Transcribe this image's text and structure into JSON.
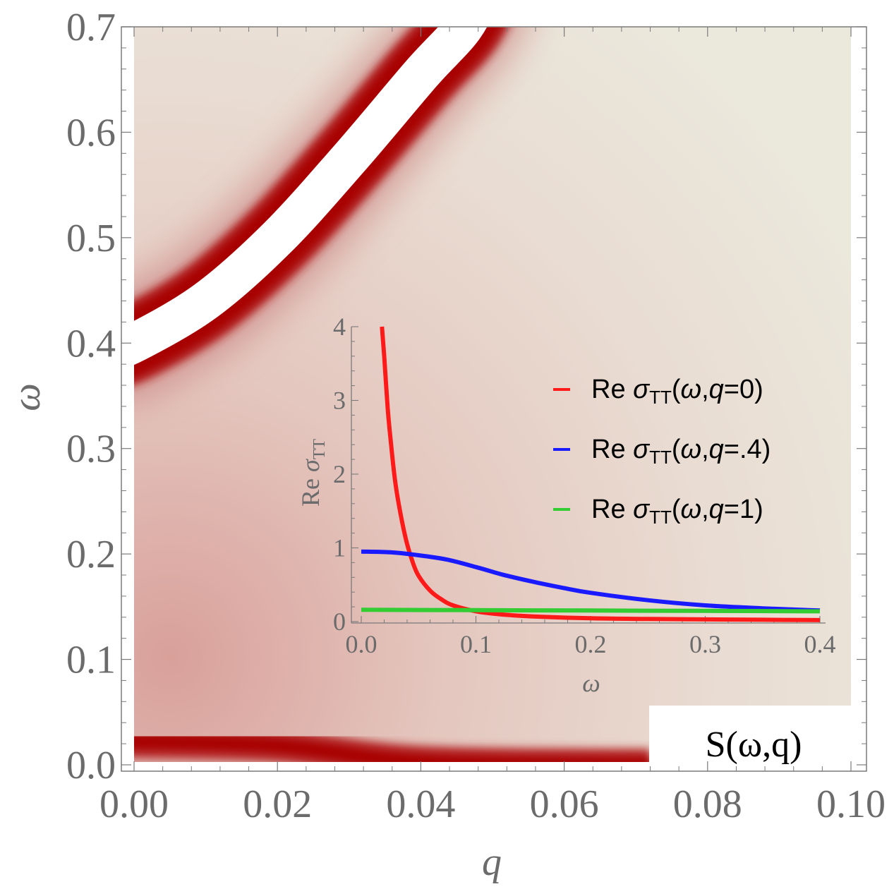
{
  "chart_data": [
    {
      "type": "heatmap",
      "title": "S(ω,q)",
      "xlabel": "q",
      "ylabel": "ω",
      "xlim": [
        0.0,
        0.1
      ],
      "ylim": [
        0.0,
        0.7
      ],
      "x_ticks": [
        "0.00",
        "0.02",
        "0.04",
        "0.06",
        "0.08",
        "0.10"
      ],
      "y_ticks": [
        "0.0",
        "0.1",
        "0.2",
        "0.3",
        "0.4",
        "0.5",
        "0.6",
        "0.7"
      ],
      "colors": {
        "peak": "#a80000",
        "background": "#ebe7da",
        "saturated": "#ffffff"
      },
      "features": [
        {
          "name": "low-frequency band",
          "points": [
            [
              0.0,
              0.022
            ],
            [
              0.02,
              0.018
            ],
            [
              0.04,
              0.003
            ],
            [
              0.072,
              0.0
            ]
          ]
        },
        {
          "name": "main dispersion band",
          "points": [
            [
              0.0,
              0.4
            ],
            [
              0.01,
              0.44
            ],
            [
              0.02,
              0.5
            ],
            [
              0.03,
              0.575
            ],
            [
              0.04,
              0.655
            ],
            [
              0.046,
              0.7
            ]
          ]
        }
      ]
    },
    {
      "type": "line",
      "xlabel": "ω",
      "ylabel": "Re σTT",
      "xlim": [
        0.0,
        0.4
      ],
      "ylim": [
        0,
        4
      ],
      "x_ticks": [
        "0.0",
        "0.1",
        "0.2",
        "0.3",
        "0.4"
      ],
      "y_ticks": [
        "0",
        "1",
        "2",
        "3",
        "4"
      ],
      "legend_position": "top-right",
      "series": [
        {
          "label": "Re σTT(ω,q=0)",
          "color": "#ff1a1a",
          "x": [
            0.018,
            0.02,
            0.023,
            0.026,
            0.03,
            0.035,
            0.04,
            0.045,
            0.05,
            0.06,
            0.07,
            0.08,
            0.1,
            0.12,
            0.15,
            0.2,
            0.25,
            0.3,
            0.35,
            0.4
          ],
          "y": [
            4.0,
            3.6,
            2.9,
            2.4,
            1.85,
            1.4,
            1.05,
            0.8,
            0.62,
            0.42,
            0.3,
            0.22,
            0.14,
            0.1,
            0.07,
            0.045,
            0.035,
            0.03,
            0.025,
            0.02
          ]
        },
        {
          "label": "Re σTT(ω,q=.4)",
          "color": "#1a1aff",
          "x": [
            0.0,
            0.025,
            0.05,
            0.075,
            0.1,
            0.125,
            0.15,
            0.175,
            0.2,
            0.25,
            0.3,
            0.35,
            0.4
          ],
          "y": [
            0.95,
            0.94,
            0.9,
            0.84,
            0.74,
            0.63,
            0.54,
            0.46,
            0.39,
            0.29,
            0.22,
            0.18,
            0.15
          ]
        },
        {
          "label": "Re σTT(ω,q=1)",
          "color": "#33cc33",
          "x": [
            0.0,
            0.1,
            0.2,
            0.3,
            0.4
          ],
          "y": [
            0.16,
            0.155,
            0.15,
            0.145,
            0.14
          ]
        }
      ]
    }
  ]
}
